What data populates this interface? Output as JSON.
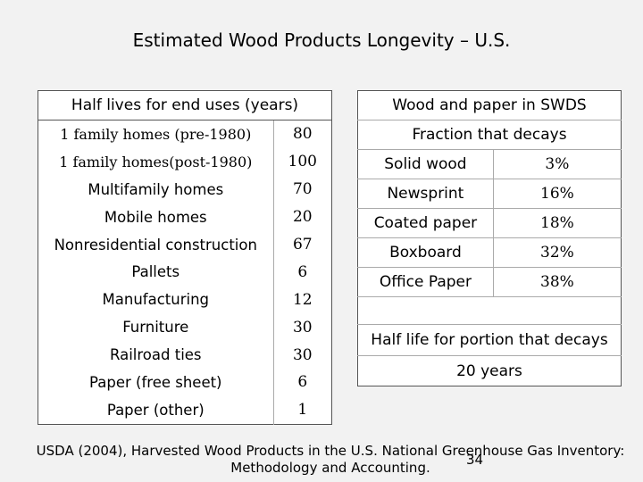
{
  "title": "Estimated Wood Products Longevity – U.S.",
  "left_table": {
    "header": "Half lives for end uses (years)",
    "rows": [
      {
        "label": "1 family homes (pre-1980)",
        "value": "80"
      },
      {
        "label": "1 family homes(post-1980)",
        "value": "100"
      },
      {
        "label": "Multifamily homes",
        "value": "70"
      },
      {
        "label": "Mobile homes",
        "value": "20"
      },
      {
        "label": "Nonresidential construction",
        "value": "67"
      },
      {
        "label": "Pallets",
        "value": "6"
      },
      {
        "label": "Manufacturing",
        "value": "12"
      },
      {
        "label": "Furniture",
        "value": "30"
      },
      {
        "label": "Railroad ties",
        "value": "30"
      },
      {
        "label": "Paper (free sheet)",
        "value": "6"
      },
      {
        "label": "Paper (other)",
        "value": "1"
      }
    ]
  },
  "right_table": {
    "header": "Wood and paper in SWDS",
    "subheader": "Fraction that decays",
    "rows": [
      {
        "label": "Solid wood",
        "value": "3%"
      },
      {
        "label": "Newsprint",
        "value": "16%"
      },
      {
        "label": "Coated paper",
        "value": "18%"
      },
      {
        "label": "Boxboard",
        "value": "32%"
      },
      {
        "label": "Office Paper",
        "value": "38%"
      }
    ],
    "half_life_label": "Half life for portion that decays",
    "half_life_value": "20 years"
  },
  "caption_line1": "USDA (2004), Harvested Wood Products in the U.S. National Greenhouse Gas Inventory:",
  "caption_line2": "Methodology and Accounting.",
  "page_number": "34"
}
